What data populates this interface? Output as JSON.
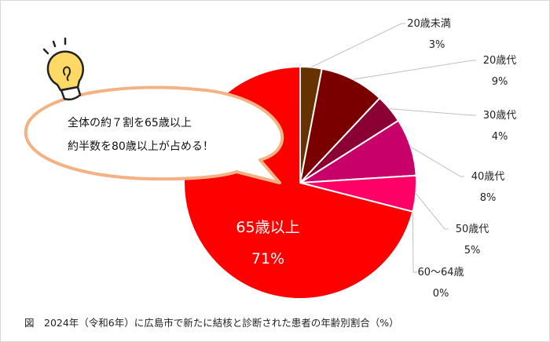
{
  "chart_data": {
    "type": "pie",
    "title": "",
    "caption": "図　2024年（令和6年）に広島市で新たに結核と診断された患者の年齢別割合（%）",
    "start": "top",
    "direction": "clockwise",
    "slices": [
      {
        "label": "20歳未満",
        "value": 3,
        "value_label": "3%",
        "color": "#663300"
      },
      {
        "label": "20歳代",
        "value": 9,
        "value_label": "9%",
        "color": "#7a0000"
      },
      {
        "label": "30歳代",
        "value": 4,
        "value_label": "4%",
        "color": "#8b0033"
      },
      {
        "label": "40歳代",
        "value": 8,
        "value_label": "8%",
        "color": "#c8006a"
      },
      {
        "label": "50歳代",
        "value": 5,
        "value_label": "5%",
        "color": "#ff0066"
      },
      {
        "label": "60～64歳",
        "value": 0,
        "value_label": "0%",
        "color": "#ff3366"
      },
      {
        "label": "65歳以上",
        "value": 71,
        "value_label": "71%",
        "color": "#ff0000"
      }
    ]
  },
  "callout": {
    "line1": "全体の約７割を65歳以上",
    "line2": "約半数を80歳以上が占める！",
    "border_color": "#f4b183",
    "icon": "lightbulb-icon"
  }
}
